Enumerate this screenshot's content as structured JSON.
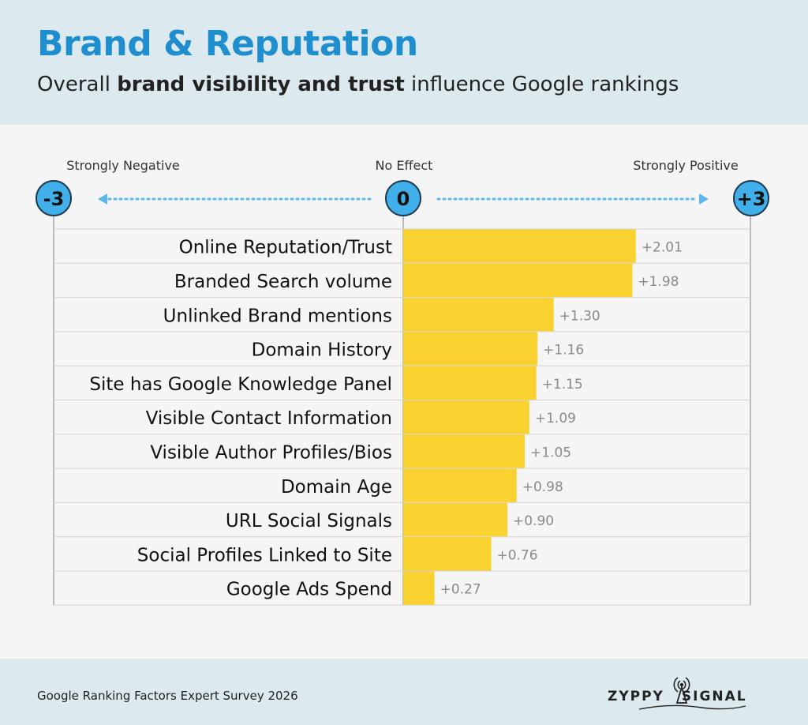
{
  "header": {
    "title": "Brand & Reputation",
    "subtitle_pre": "Overall ",
    "subtitle_bold": "brand visibility and trust",
    "subtitle_post": " influence Google rankings"
  },
  "scale": {
    "neg_label": "Strongly Negative",
    "zero_label": "No Effect",
    "pos_label": "Strongly Positive",
    "neg_value": "-3",
    "zero_value": "0",
    "pos_value": "+3"
  },
  "chart_data": {
    "type": "bar",
    "orientation": "horizontal",
    "xlim": [
      -3,
      3
    ],
    "bar_color": "#f9d22f",
    "categories": [
      "Online Reputation/Trust",
      "Branded Search volume",
      "Unlinked Brand mentions",
      "Domain History",
      "Site has Google Knowledge Panel",
      "Visible Contact Information",
      "Visible Author Profiles/Bios",
      "Domain Age",
      "URL Social Signals",
      "Social Profiles Linked to Site",
      "Google Ads Spend"
    ],
    "values": [
      2.01,
      1.98,
      1.3,
      1.16,
      1.15,
      1.09,
      1.05,
      0.98,
      0.9,
      0.76,
      0.27
    ],
    "value_labels": [
      "+2.01",
      "+1.98",
      "+1.30",
      "+1.16",
      "+1.15",
      "+1.09",
      "+1.05",
      "+0.98",
      "+0.90",
      "+0.76",
      "+0.27"
    ]
  },
  "footer": {
    "source": "Google Ranking Factors Expert Survey 2026",
    "logo_left": "ZYPPY",
    "logo_right": "SIGNAL"
  },
  "colors": {
    "accent": "#1e8ecf",
    "circle": "#41b0ea",
    "arrow": "#5bb8ec"
  }
}
